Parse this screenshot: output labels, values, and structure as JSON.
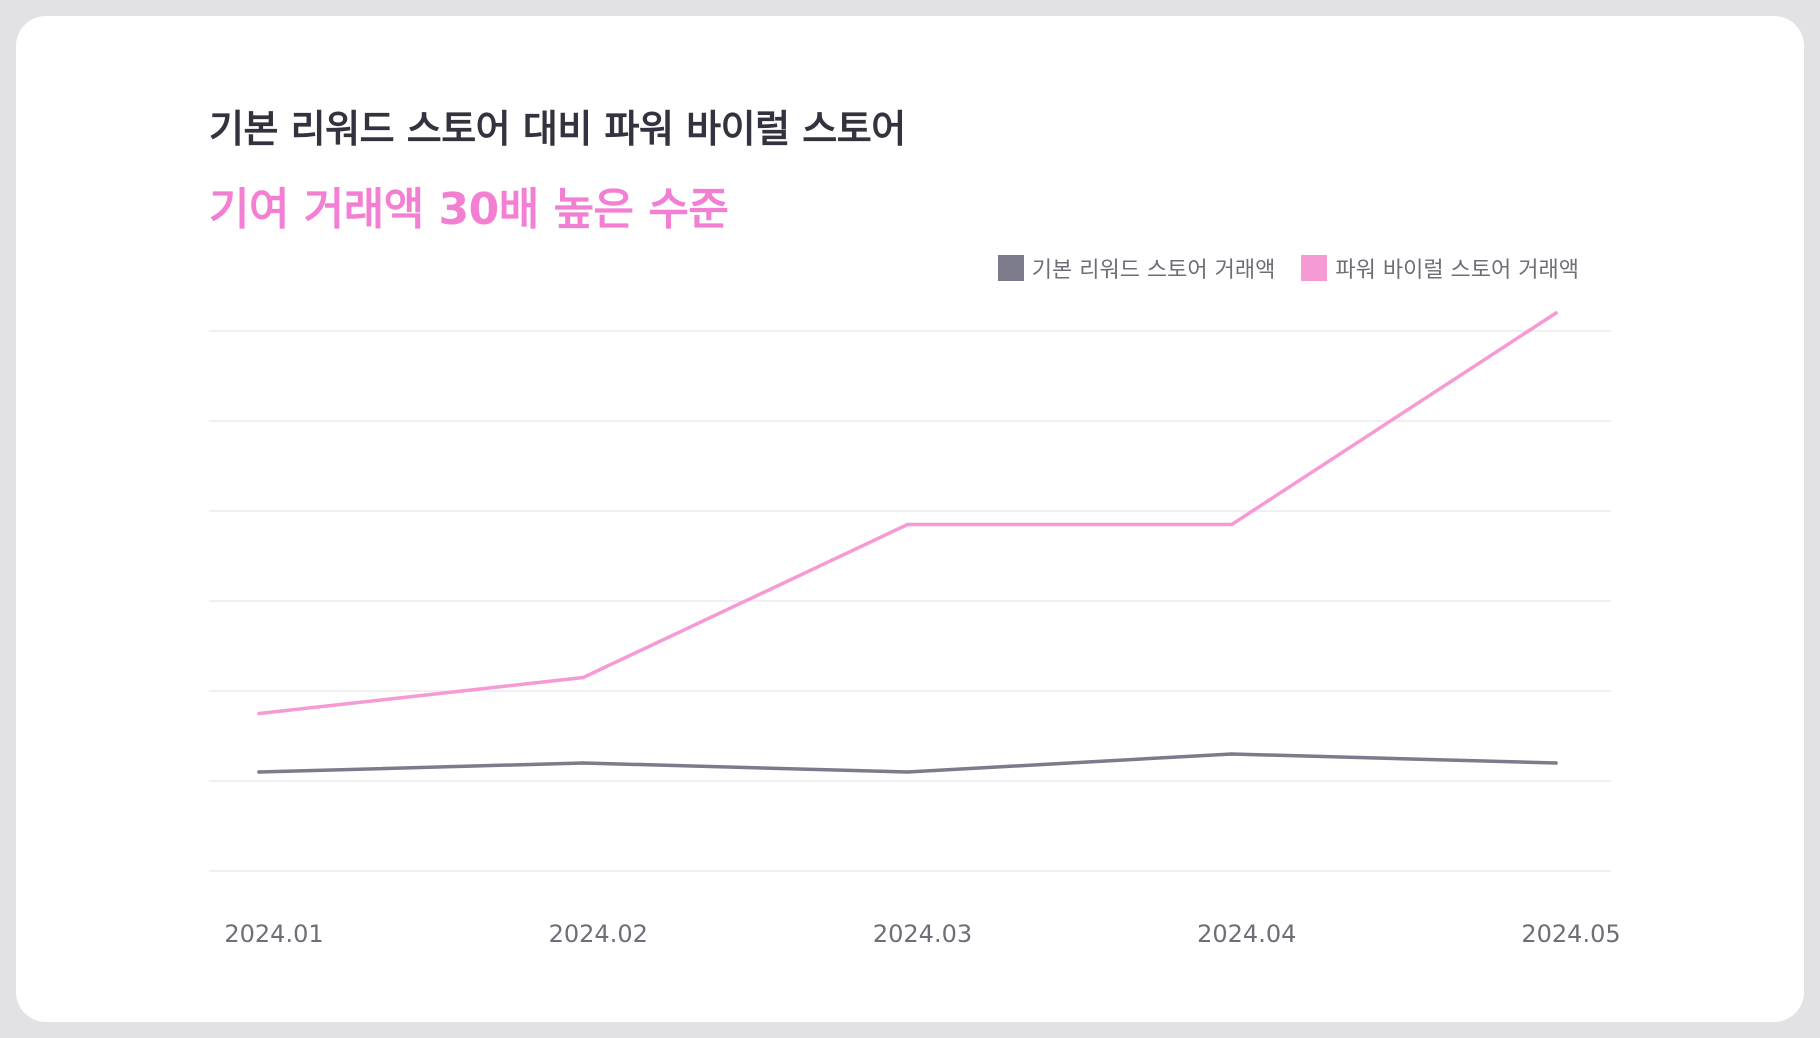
{
  "title": "기본 리워드 스토어 대비 파워 바이럴 스토어",
  "subtitle": "기여 거래액 30배 높은 수준",
  "colors": {
    "base": "#7c7b8b",
    "power": "#f69ad5",
    "grid": "#ececef",
    "title": "#33333f",
    "subtitle": "#f37fd3"
  },
  "chart_data": {
    "type": "line",
    "categories": [
      "2024.01",
      "2024.02",
      "2024.03",
      "2024.04",
      "2024.05"
    ],
    "series": [
      {
        "name": "기본 리워드 스토어 거래액",
        "color": "#7c7b8b",
        "values": [
          1.1,
          1.2,
          1.1,
          1.3,
          1.2
        ]
      },
      {
        "name": "파워 바이럴 스토어 거래액",
        "color": "#f69ad5",
        "values": [
          1.75,
          2.15,
          3.85,
          3.85,
          6.2
        ]
      }
    ],
    "ylim": [
      0,
      6
    ],
    "grid": true,
    "legend": "top-right",
    "xlabel": "",
    "ylabel": ""
  }
}
